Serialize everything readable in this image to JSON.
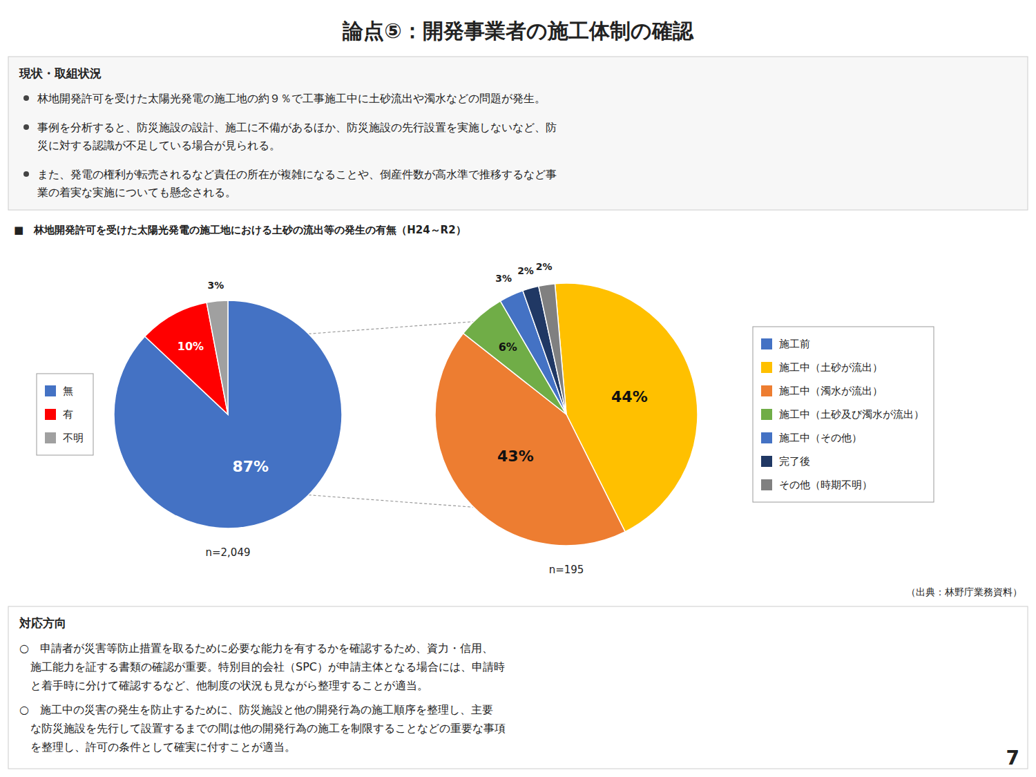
{
  "title": "論点⑤：開発事業者の施工体制の確認",
  "section1": {
    "label": "現状・取組状況",
    "bullets": [
      [
        "林地開発許可を受けた太陽光発電の施工地の約９％で工事施工中に土砂流出や濁水などの問題が発生。"
      ],
      [
        "事例を分析すると、防災施設の設計、施工に不備があるほか、防災施設の先行設置を実施しないなど、防",
        "災に対する認識が不足している場合が見られる。"
      ],
      [
        "また、発電の権利が転売されるなど責任の所在が複雑になることや、倒産件数が高水準で推移するなど事",
        "業の着実な実施についても懸念される。"
      ]
    ]
  },
  "chart_caption": "■　林地開発許可を受けた太陽光発電の施工地における土砂の流出等の発生の有無（H24～R2）",
  "chart_data": [
    {
      "type": "pie",
      "categories": [
        "無",
        "有",
        "不明"
      ],
      "values": [
        87,
        10,
        3
      ],
      "value_labels": [
        "87%",
        "10%",
        "3%"
      ],
      "colors": [
        "#4472c4",
        "#ff0000",
        "#a0a0a0"
      ],
      "data_labels": true,
      "legend": "left",
      "annotations": [
        "n=2,049"
      ]
    },
    {
      "type": "pie",
      "categories": [
        "施工前",
        "施工中（土砂が流出）",
        "施工中（濁水が流出）",
        "施工中（土砂及び濁水が流出）",
        "施工中（その他）",
        "完了後",
        "その他（時期不明）"
      ],
      "values": [
        null,
        44,
        43,
        6,
        3,
        2,
        2
      ],
      "value_labels": [
        null,
        "44%",
        "43%",
        "6%",
        "3%",
        "2%",
        "2%"
      ],
      "colors": [
        "#4472c4",
        "#ffc000",
        "#ed7d31",
        "#70ad47",
        "#4472c4",
        "#203864",
        "#808080"
      ],
      "data_labels": true,
      "legend": "right",
      "annotations": [
        "n=195"
      ]
    }
  ],
  "source": "（出典：林野庁業務資料）",
  "section2": {
    "label": "対応方向",
    "paragraphs": [
      [
        "○　申請者が災害等防止措置を取るために必要な能力を有するかを確認するため、資力・信用、",
        "　施工能力を証する書類の確認が重要。特別目的会社（SPC）が申請主体となる場合には、申請時",
        "　と着手時に分けて確認するなど、他制度の状況も見ながら整理することが適当。"
      ],
      [
        "○　施工中の災害の発生を防止するために、防災施設と他の開発行為の施工順序を整理し、主要",
        "　な防災施設を先行して設置するまでの間は他の開発行為の施工を制限することなどの重要な事項",
        "　を整理し、許可の条件として確実に付すことが適当。"
      ]
    ]
  },
  "page_number": "7"
}
